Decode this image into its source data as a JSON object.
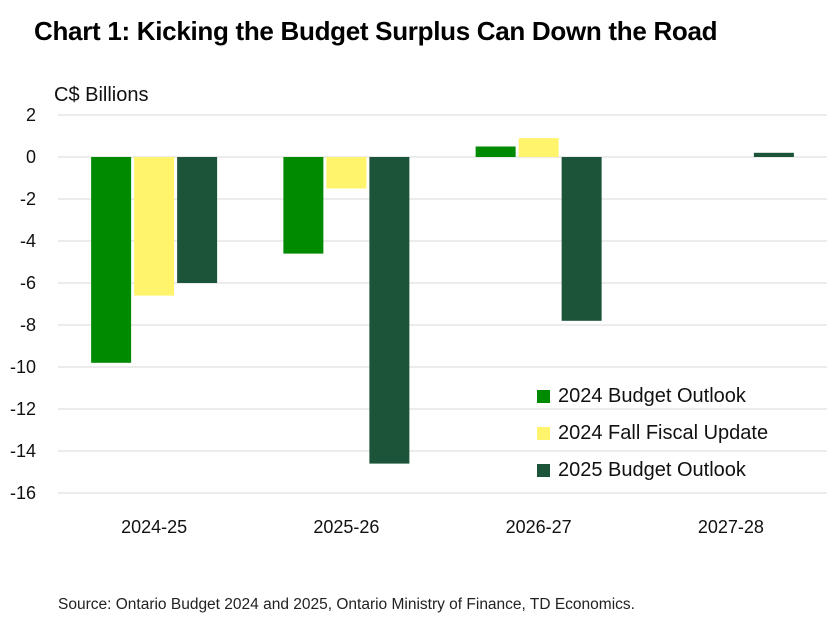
{
  "chart_data": {
    "type": "bar",
    "title": "Chart 1: Kicking the Budget Surplus Can Down the Road",
    "ylabel": "C$ Billions",
    "xlabel": "",
    "categories": [
      "2024-25",
      "2025-26",
      "2026-27",
      "2027-28"
    ],
    "ylim": [
      -16,
      2
    ],
    "yticks": [
      2,
      0,
      -2,
      -4,
      -6,
      -8,
      -10,
      -12,
      -14,
      -16
    ],
    "grid": true,
    "legend_position": "bottom-right",
    "series": [
      {
        "name": "2024 Budget Outlook",
        "color": "#008a00",
        "values": [
          -9.8,
          -4.6,
          0.5,
          null
        ]
      },
      {
        "name": "2024 Fall Fiscal Update",
        "color": "#fff46b",
        "values": [
          -6.6,
          -1.5,
          0.9,
          null
        ]
      },
      {
        "name": "2025 Budget Outlook",
        "color": "#1b5438",
        "values": [
          -6.0,
          -14.6,
          -7.8,
          0.2
        ]
      }
    ],
    "source": "Source: Ontario Budget 2024 and 2025, Ontario Ministry of Finance, TD Economics."
  }
}
